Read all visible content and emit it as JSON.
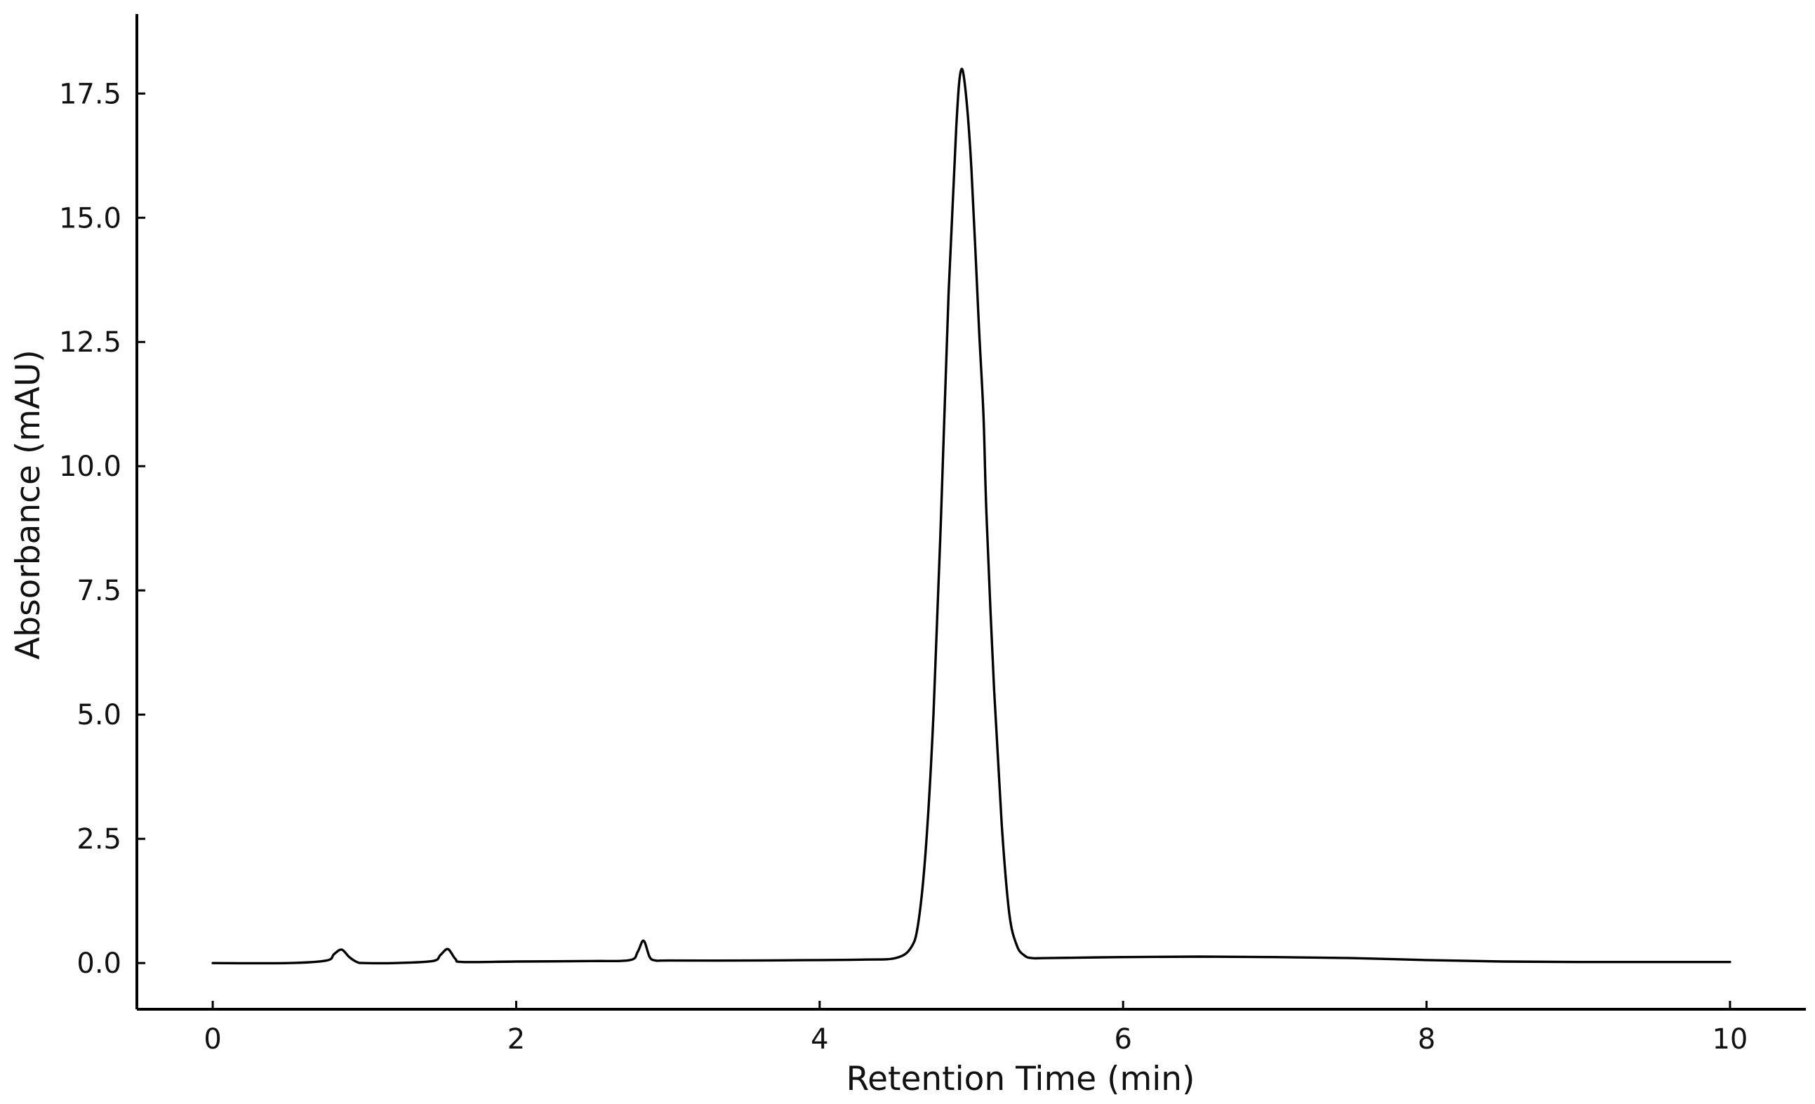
{
  "chart_data": {
    "type": "line",
    "title": "",
    "xlabel": "Retention Time (min)",
    "ylabel": "Absorbance (mAU)",
    "xlim": [
      -0.5,
      10.5
    ],
    "ylim": [
      -0.93,
      19.1
    ],
    "xticks": [
      0,
      2,
      4,
      6,
      8,
      10
    ],
    "xtick_labels": [
      "0",
      "2",
      "4",
      "6",
      "8",
      "10"
    ],
    "yticks": [
      0.0,
      2.5,
      5.0,
      7.5,
      10.0,
      12.5,
      15.0,
      17.5
    ],
    "ytick_labels": [
      "0.0",
      "2.5",
      "5.0",
      "7.5",
      "10.0",
      "12.5",
      "15.0",
      "17.5"
    ],
    "grid": false,
    "legend": false,
    "series": [
      {
        "color": "#000000",
        "x": [
          0.0,
          0.5,
          0.75,
          0.8,
          0.85,
          0.9,
          0.95,
          1.0,
          1.2,
          1.45,
          1.5,
          1.55,
          1.6,
          1.65,
          2.0,
          2.5,
          2.75,
          2.8,
          2.84,
          2.88,
          2.92,
          3.0,
          3.5,
          4.0,
          4.3,
          4.5,
          4.6,
          4.65,
          4.7,
          4.75,
          4.8,
          4.85,
          4.9,
          4.93,
          4.96,
          5.0,
          5.05,
          5.08,
          5.1,
          5.15,
          5.2,
          5.25,
          5.3,
          5.35,
          5.4,
          5.5,
          6.0,
          6.5,
          7.0,
          7.5,
          8.0,
          8.5,
          9.0,
          9.5,
          10.0
        ],
        "y": [
          0.0,
          0.0,
          0.05,
          0.18,
          0.27,
          0.12,
          0.02,
          0.0,
          0.0,
          0.04,
          0.16,
          0.28,
          0.08,
          0.02,
          0.03,
          0.04,
          0.06,
          0.22,
          0.45,
          0.12,
          0.05,
          0.05,
          0.05,
          0.06,
          0.07,
          0.1,
          0.3,
          0.8,
          2.3,
          5.0,
          9.0,
          13.5,
          16.8,
          17.95,
          17.6,
          16.0,
          12.8,
          11.0,
          9.0,
          5.5,
          2.8,
          1.0,
          0.35,
          0.15,
          0.1,
          0.1,
          0.12,
          0.13,
          0.12,
          0.1,
          0.06,
          0.03,
          0.02,
          0.02,
          0.02
        ]
      }
    ]
  }
}
